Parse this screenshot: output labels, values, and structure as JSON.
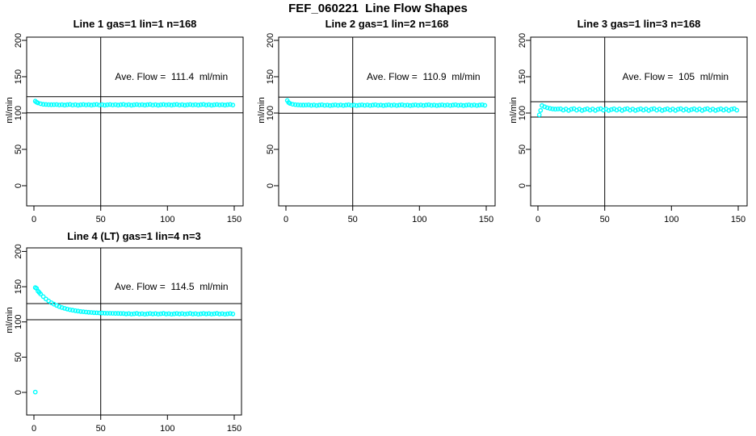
{
  "page": {
    "title": "FEF_060221  Line Flow Shapes"
  },
  "colors": {
    "points": "#00FFFF",
    "axis": "#000000",
    "background": "#FFFFFF"
  },
  "chart_data": [
    {
      "type": "scatter",
      "title": "Line 1 gas=1 lin=1 n=168",
      "annotation": "Ave. Flow =  111.4  ml/min",
      "ave_flow": 111.4,
      "ylabel": "ml/min",
      "xlabel": "",
      "xticks": [
        0,
        50,
        100,
        150
      ],
      "yticks": [
        0,
        50,
        100,
        150,
        200
      ],
      "xlim": [
        0,
        150
      ],
      "ylim": [
        0,
        200
      ],
      "grid": false,
      "legend": "none",
      "marker": "open-circle",
      "vline_x": 50,
      "hlines": [
        122.5,
        100.3
      ],
      "points": [
        [
          1,
          116.3
        ],
        [
          2,
          114.9
        ],
        [
          3,
          113.9
        ],
        [
          5,
          112.8
        ],
        [
          7,
          112.0
        ],
        [
          9,
          111.8
        ],
        [
          11,
          111.6
        ],
        [
          13,
          111.4
        ],
        [
          15,
          111.5
        ],
        [
          17,
          111.7
        ],
        [
          19,
          111.1
        ],
        [
          21,
          111.6
        ],
        [
          23,
          110.9
        ],
        [
          25,
          111.4
        ],
        [
          27,
          111.8
        ],
        [
          29,
          111.0
        ],
        [
          31,
          111.5
        ],
        [
          33,
          110.8
        ],
        [
          35,
          111.3
        ],
        [
          37,
          111.7
        ],
        [
          39,
          111.1
        ],
        [
          41,
          111.6
        ],
        [
          43,
          110.9
        ],
        [
          45,
          111.4
        ],
        [
          47,
          111.8
        ],
        [
          49,
          111.0
        ],
        [
          51,
          111.5
        ],
        [
          53,
          110.8
        ],
        [
          55,
          111.3
        ],
        [
          57,
          111.7
        ],
        [
          59,
          111.1
        ],
        [
          61,
          111.6
        ],
        [
          63,
          110.9
        ],
        [
          65,
          111.4
        ],
        [
          67,
          111.8
        ],
        [
          69,
          111.0
        ],
        [
          71,
          111.5
        ],
        [
          73,
          110.8
        ],
        [
          75,
          111.3
        ],
        [
          77,
          111.7
        ],
        [
          79,
          111.1
        ],
        [
          81,
          111.6
        ],
        [
          83,
          110.9
        ],
        [
          85,
          111.4
        ],
        [
          87,
          111.8
        ],
        [
          89,
          111.0
        ],
        [
          91,
          111.5
        ],
        [
          93,
          110.8
        ],
        [
          95,
          111.3
        ],
        [
          97,
          111.7
        ],
        [
          99,
          111.1
        ],
        [
          101,
          111.6
        ],
        [
          103,
          110.9
        ],
        [
          105,
          111.4
        ],
        [
          107,
          111.8
        ],
        [
          109,
          111.0
        ],
        [
          111,
          111.5
        ],
        [
          113,
          110.8
        ],
        [
          115,
          111.3
        ],
        [
          117,
          111.7
        ],
        [
          119,
          111.1
        ],
        [
          121,
          111.6
        ],
        [
          123,
          110.9
        ],
        [
          125,
          111.4
        ],
        [
          127,
          111.8
        ],
        [
          129,
          111.0
        ],
        [
          131,
          111.5
        ],
        [
          133,
          110.8
        ],
        [
          135,
          111.3
        ],
        [
          137,
          111.7
        ],
        [
          139,
          111.1
        ],
        [
          141,
          111.6
        ],
        [
          143,
          110.9
        ],
        [
          145,
          111.4
        ],
        [
          147,
          111.8
        ],
        [
          149,
          111.0
        ]
      ]
    },
    {
      "type": "scatter",
      "title": "Line 2 gas=1 lin=2 n=168",
      "annotation": "Ave. Flow =  110.9  ml/min",
      "ave_flow": 110.9,
      "ylabel": "ml/min",
      "xlabel": "",
      "xticks": [
        0,
        50,
        100,
        150
      ],
      "yticks": [
        0,
        50,
        100,
        150,
        200
      ],
      "xlim": [
        0,
        150
      ],
      "ylim": [
        0,
        200
      ],
      "grid": false,
      "legend": "none",
      "marker": "open-circle",
      "vline_x": 50,
      "hlines": [
        122.0,
        99.8
      ],
      "points": [
        [
          1,
          117.2
        ],
        [
          2,
          114.6
        ],
        [
          3,
          113.2
        ],
        [
          5,
          112.1
        ],
        [
          7,
          111.5
        ],
        [
          9,
          111.2
        ],
        [
          11,
          111.0
        ],
        [
          13,
          110.9
        ],
        [
          15,
          111.0
        ],
        [
          17,
          111.2
        ],
        [
          19,
          110.6
        ],
        [
          21,
          111.1
        ],
        [
          23,
          110.4
        ],
        [
          25,
          110.9
        ],
        [
          27,
          111.3
        ],
        [
          29,
          110.5
        ],
        [
          31,
          111.0
        ],
        [
          33,
          110.3
        ],
        [
          35,
          110.8
        ],
        [
          37,
          111.2
        ],
        [
          39,
          110.6
        ],
        [
          41,
          111.1
        ],
        [
          43,
          110.4
        ],
        [
          45,
          110.9
        ],
        [
          47,
          111.3
        ],
        [
          49,
          110.5
        ],
        [
          51,
          111.0
        ],
        [
          53,
          110.3
        ],
        [
          55,
          110.8
        ],
        [
          57,
          111.2
        ],
        [
          59,
          110.6
        ],
        [
          61,
          111.1
        ],
        [
          63,
          110.4
        ],
        [
          65,
          110.9
        ],
        [
          67,
          111.3
        ],
        [
          69,
          110.5
        ],
        [
          71,
          111.0
        ],
        [
          73,
          110.3
        ],
        [
          75,
          110.8
        ],
        [
          77,
          111.2
        ],
        [
          79,
          110.6
        ],
        [
          81,
          111.1
        ],
        [
          83,
          110.4
        ],
        [
          85,
          110.9
        ],
        [
          87,
          111.3
        ],
        [
          89,
          110.5
        ],
        [
          91,
          111.0
        ],
        [
          93,
          110.3
        ],
        [
          95,
          110.8
        ],
        [
          97,
          111.2
        ],
        [
          99,
          110.6
        ],
        [
          101,
          111.1
        ],
        [
          103,
          110.4
        ],
        [
          105,
          110.9
        ],
        [
          107,
          111.3
        ],
        [
          109,
          110.5
        ],
        [
          111,
          111.0
        ],
        [
          113,
          110.3
        ],
        [
          115,
          110.8
        ],
        [
          117,
          111.2
        ],
        [
          119,
          110.6
        ],
        [
          121,
          111.1
        ],
        [
          123,
          110.4
        ],
        [
          125,
          110.9
        ],
        [
          127,
          111.3
        ],
        [
          129,
          110.5
        ],
        [
          131,
          111.0
        ],
        [
          133,
          110.3
        ],
        [
          135,
          110.8
        ],
        [
          137,
          111.2
        ],
        [
          139,
          110.6
        ],
        [
          141,
          111.1
        ],
        [
          143,
          110.4
        ],
        [
          145,
          110.9
        ],
        [
          147,
          111.3
        ],
        [
          149,
          110.5
        ]
      ]
    },
    {
      "type": "scatter",
      "title": "Line 3 gas=1 lin=3 n=168",
      "annotation": "Ave. Flow =  105  ml/min",
      "ave_flow": 105,
      "ylabel": "ml/min",
      "xlabel": "",
      "xticks": [
        0,
        50,
        100,
        150
      ],
      "yticks": [
        0,
        50,
        100,
        150,
        200
      ],
      "xlim": [
        0,
        150
      ],
      "ylim": [
        0,
        200
      ],
      "grid": false,
      "legend": "none",
      "marker": "open-circle",
      "vline_x": 50,
      "hlines": [
        115.5,
        94.5
      ],
      "points": [
        [
          1,
          97.5
        ],
        [
          2,
          103.5
        ],
        [
          3,
          110.3
        ],
        [
          5,
          108.6
        ],
        [
          7,
          107.2
        ],
        [
          9,
          106.3
        ],
        [
          11,
          105.7
        ],
        [
          13,
          105.3
        ],
        [
          15,
          105.5
        ],
        [
          17,
          105.8
        ],
        [
          19,
          104.0
        ],
        [
          21,
          105.6
        ],
        [
          23,
          103.6
        ],
        [
          25,
          105.2
        ],
        [
          27,
          106.0
        ],
        [
          29,
          103.9
        ],
        [
          31,
          105.4
        ],
        [
          33,
          103.5
        ],
        [
          35,
          104.8
        ],
        [
          37,
          105.8
        ],
        [
          39,
          104.0
        ],
        [
          41,
          105.6
        ],
        [
          43,
          103.6
        ],
        [
          45,
          105.2
        ],
        [
          47,
          106.0
        ],
        [
          49,
          103.9
        ],
        [
          51,
          105.4
        ],
        [
          53,
          103.5
        ],
        [
          55,
          104.8
        ],
        [
          57,
          105.8
        ],
        [
          59,
          104.0
        ],
        [
          61,
          105.6
        ],
        [
          63,
          103.6
        ],
        [
          65,
          105.2
        ],
        [
          67,
          106.0
        ],
        [
          69,
          103.9
        ],
        [
          71,
          105.4
        ],
        [
          73,
          103.5
        ],
        [
          75,
          104.8
        ],
        [
          77,
          105.8
        ],
        [
          79,
          104.0
        ],
        [
          81,
          105.6
        ],
        [
          83,
          103.6
        ],
        [
          85,
          105.2
        ],
        [
          87,
          106.0
        ],
        [
          89,
          103.9
        ],
        [
          91,
          105.4
        ],
        [
          93,
          103.5
        ],
        [
          95,
          104.8
        ],
        [
          97,
          105.8
        ],
        [
          99,
          104.0
        ],
        [
          101,
          105.6
        ],
        [
          103,
          103.6
        ],
        [
          105,
          105.2
        ],
        [
          107,
          106.0
        ],
        [
          109,
          103.9
        ],
        [
          111,
          105.4
        ],
        [
          113,
          103.5
        ],
        [
          115,
          104.8
        ],
        [
          117,
          105.8
        ],
        [
          119,
          104.0
        ],
        [
          121,
          105.6
        ],
        [
          123,
          103.6
        ],
        [
          125,
          105.2
        ],
        [
          127,
          106.0
        ],
        [
          129,
          103.9
        ],
        [
          131,
          105.4
        ],
        [
          133,
          103.5
        ],
        [
          135,
          104.8
        ],
        [
          137,
          105.8
        ],
        [
          139,
          104.0
        ],
        [
          141,
          105.6
        ],
        [
          143,
          103.6
        ],
        [
          145,
          105.2
        ],
        [
          147,
          106.0
        ],
        [
          149,
          103.9
        ]
      ]
    },
    {
      "type": "scatter",
      "title": "Line 4 (LT) gas=1 lin=4 n=3",
      "annotation": "Ave. Flow =  114.5  ml/min",
      "ave_flow": 114.5,
      "ylabel": "ml/min",
      "xlabel": "",
      "xticks": [
        0,
        50,
        100,
        150
      ],
      "yticks": [
        0,
        50,
        100,
        150,
        200
      ],
      "xlim": [
        0,
        150
      ],
      "ylim": [
        0,
        200
      ],
      "grid": false,
      "legend": "none",
      "marker": "open-circle",
      "vline_x": 50,
      "hlines": [
        126.0,
        103.1
      ],
      "points": [
        [
          1,
          0.5
        ],
        [
          1,
          148.7
        ],
        [
          2,
          147.5
        ],
        [
          3,
          143.8
        ],
        [
          4,
          141.8
        ],
        [
          5,
          139.5
        ],
        [
          7,
          135.8
        ],
        [
          9,
          132.5
        ],
        [
          11,
          129.7
        ],
        [
          13,
          127.3
        ],
        [
          15,
          125.2
        ],
        [
          17,
          123.4
        ],
        [
          19,
          121.8
        ],
        [
          21,
          120.4
        ],
        [
          23,
          119.2
        ],
        [
          25,
          118.2
        ],
        [
          27,
          117.3
        ],
        [
          29,
          116.6
        ],
        [
          31,
          115.9
        ],
        [
          33,
          115.3
        ],
        [
          35,
          114.8
        ],
        [
          37,
          114.4
        ],
        [
          39,
          114.0
        ],
        [
          41,
          113.6
        ],
        [
          43,
          113.4
        ],
        [
          45,
          113.1
        ],
        [
          47,
          112.9
        ],
        [
          49,
          112.7
        ],
        [
          51,
          112.6
        ],
        [
          53,
          112.4
        ],
        [
          55,
          112.3
        ],
        [
          57,
          112.2
        ],
        [
          59,
          112.1
        ],
        [
          61,
          112.0
        ],
        [
          63,
          112.0
        ],
        [
          65,
          111.9
        ],
        [
          67,
          111.9
        ],
        [
          69,
          111.3
        ],
        [
          71,
          111.8
        ],
        [
          73,
          111.1
        ],
        [
          75,
          111.6
        ],
        [
          77,
          112.0
        ],
        [
          79,
          111.2
        ],
        [
          81,
          111.7
        ],
        [
          83,
          111.0
        ],
        [
          85,
          111.5
        ],
        [
          87,
          111.9
        ],
        [
          89,
          111.3
        ],
        [
          91,
          111.8
        ],
        [
          93,
          111.1
        ],
        [
          95,
          111.6
        ],
        [
          97,
          112.0
        ],
        [
          99,
          111.2
        ],
        [
          101,
          111.7
        ],
        [
          103,
          111.0
        ],
        [
          105,
          111.5
        ],
        [
          107,
          111.9
        ],
        [
          109,
          111.3
        ],
        [
          111,
          111.8
        ],
        [
          113,
          111.1
        ],
        [
          115,
          111.6
        ],
        [
          117,
          112.0
        ],
        [
          119,
          111.2
        ],
        [
          121,
          111.7
        ],
        [
          123,
          111.0
        ],
        [
          125,
          111.5
        ],
        [
          127,
          111.9
        ],
        [
          129,
          111.3
        ],
        [
          131,
          111.8
        ],
        [
          133,
          111.1
        ],
        [
          135,
          111.6
        ],
        [
          137,
          112.0
        ],
        [
          139,
          111.2
        ],
        [
          141,
          111.7
        ],
        [
          143,
          111.0
        ],
        [
          145,
          111.5
        ],
        [
          147,
          111.9
        ],
        [
          149,
          111.3
        ]
      ]
    }
  ]
}
